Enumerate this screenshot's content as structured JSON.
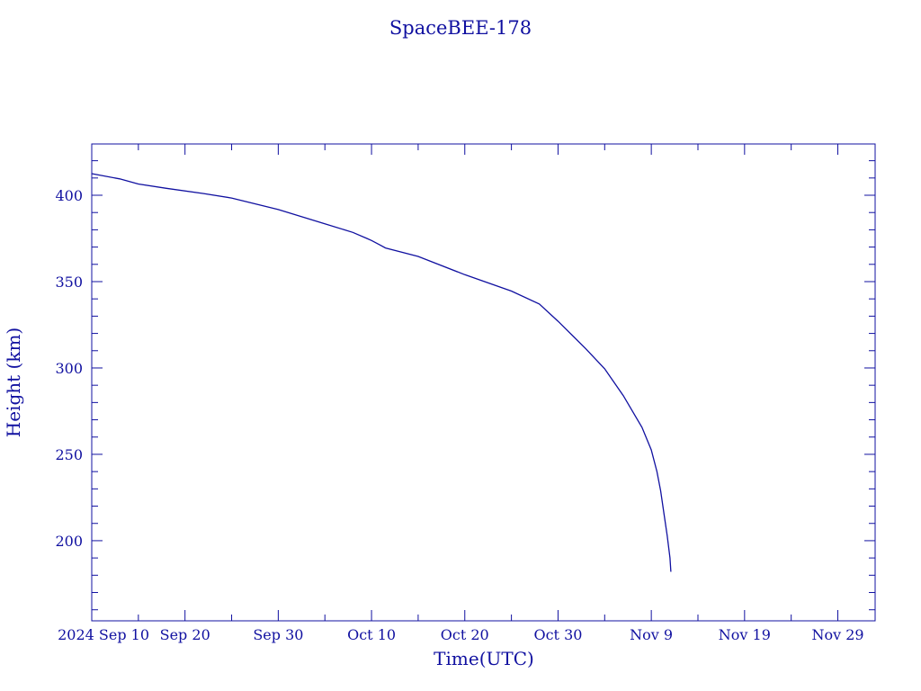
{
  "chart_data": {
    "type": "line",
    "title": "SpaceBEE-178",
    "xlabel": "Time(UTC)",
    "ylabel": "Height (km)",
    "x_unit": "days since 2024 Sep 10",
    "xlim": [
      0,
      84
    ],
    "ylim": [
      153.6,
      429.7
    ],
    "x_ticks": [
      {
        "value": 0,
        "label": "2024 Sep 10"
      },
      {
        "value": 10,
        "label": "Sep 20"
      },
      {
        "value": 20,
        "label": "Sep 30"
      },
      {
        "value": 30,
        "label": "Oct 10"
      },
      {
        "value": 40,
        "label": "Oct 20"
      },
      {
        "value": 50,
        "label": "Oct 30"
      },
      {
        "value": 60,
        "label": "Nov  9"
      },
      {
        "value": 70,
        "label": "Nov 19"
      },
      {
        "value": 80,
        "label": "Nov 29"
      }
    ],
    "y_ticks": [
      {
        "value": 200,
        "label": "200"
      },
      {
        "value": 250,
        "label": "250"
      },
      {
        "value": 300,
        "label": "300"
      },
      {
        "value": 350,
        "label": "350"
      },
      {
        "value": 400,
        "label": "400"
      }
    ],
    "grid": false,
    "color": "#1010a0",
    "series": [
      {
        "name": "SpaceBEE-178",
        "x": [
          0,
          3,
          5,
          8,
          12,
          15,
          20,
          25,
          28,
          29.5,
          30,
          30.8,
          31.5,
          35,
          40,
          45,
          48,
          50,
          53,
          55,
          57,
          59,
          60,
          60.6,
          61,
          61.4,
          61.7,
          62,
          62.1
        ],
        "y": [
          412.5,
          409.5,
          406.5,
          404,
          401,
          398.4,
          391.7,
          383.5,
          378.5,
          375,
          373.8,
          371.5,
          369.5,
          364.6,
          354,
          344.5,
          337,
          327,
          311,
          299.5,
          284,
          265.6,
          252.6,
          240,
          229,
          214,
          203,
          190,
          182
        ]
      }
    ]
  }
}
